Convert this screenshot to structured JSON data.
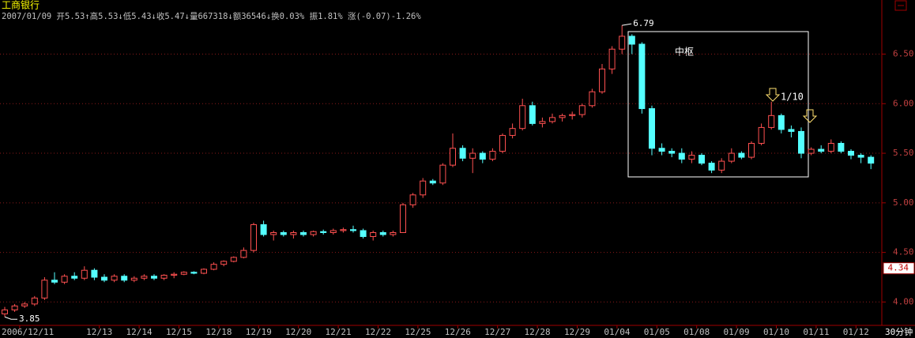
{
  "chart_data": {
    "type": "candlestick",
    "title": "工商银行",
    "info_line": "2007/01/09 开5.53↑高5.53↓低5.43↓收5.47↓量667318↓额36546↓换0.03% 振1.81% 涨(-0.07)-1.26%",
    "period": "30分钟",
    "zone_label": "中枢",
    "note_label": "1/10",
    "high_marker": 6.79,
    "low_marker": 3.85,
    "current_price": 4.34,
    "up_color": "#ff5050",
    "down_color": "#54ffff",
    "grid": true,
    "ylim": [
      3.82,
      6.95
    ],
    "yticks": [
      {
        "value": 4,
        "label": "4.00"
      },
      {
        "value": 4.5,
        "label": "4.50"
      },
      {
        "value": 5,
        "label": "5.00"
      },
      {
        "value": 5.5,
        "label": "5.50"
      },
      {
        "value": 6,
        "label": "6.00"
      },
      {
        "value": 6.5,
        "label": "6.50"
      }
    ],
    "categories": [
      null,
      "2006/12/11",
      null,
      null,
      null,
      null,
      null,
      null,
      null,
      "12/13",
      null,
      null,
      null,
      "12/14",
      null,
      null,
      null,
      "12/15",
      null,
      null,
      null,
      "12/18",
      null,
      null,
      null,
      "12/19",
      null,
      null,
      null,
      "12/20",
      null,
      null,
      null,
      "12/21",
      null,
      null,
      null,
      "12/22",
      null,
      null,
      null,
      "12/25",
      null,
      null,
      null,
      "12/26",
      null,
      null,
      null,
      "12/27",
      null,
      null,
      null,
      "12/28",
      null,
      null,
      null,
      "12/29",
      null,
      null,
      null,
      "01/04",
      null,
      null,
      null,
      "01/05",
      null,
      null,
      null,
      "01/08",
      null,
      null,
      null,
      "01/09",
      null,
      null,
      null,
      "01/10",
      null,
      null,
      null,
      "01/11",
      null,
      null,
      null,
      "01/12",
      null,
      null
    ],
    "open": [
      3.88,
      3.92,
      3.96,
      3.98,
      4.04,
      4.22,
      4.2,
      4.26,
      4.24,
      4.32,
      4.25,
      4.22,
      4.26,
      4.22,
      4.24,
      4.26,
      4.24,
      4.27,
      4.28,
      4.3,
      4.29,
      4.33,
      4.38,
      4.41,
      4.45,
      4.52,
      4.78,
      4.68,
      4.7,
      4.68,
      4.7,
      4.68,
      4.71,
      4.7,
      4.72,
      4.73,
      4.72,
      4.66,
      4.7,
      4.68,
      4.7,
      4.98,
      5.08,
      5.22,
      5.2,
      5.38,
      5.55,
      5.45,
      5.5,
      5.44,
      5.52,
      5.68,
      5.75,
      5.98,
      5.8,
      5.82,
      5.86,
      5.88,
      5.89,
      5.98,
      6.12,
      6.35,
      6.55,
      6.68,
      6.6,
      5.95,
      5.55,
      5.52,
      5.5,
      5.44,
      5.48,
      5.4,
      5.33,
      5.42,
      5.5,
      5.46,
      5.6,
      5.76,
      5.88,
      5.74,
      5.72,
      5.5,
      5.54,
      5.52,
      5.6,
      5.52,
      5.48,
      5.46
    ],
    "high": [
      3.95,
      3.98,
      4.0,
      4.06,
      4.25,
      4.3,
      4.28,
      4.3,
      4.36,
      4.34,
      4.28,
      4.28,
      4.28,
      4.26,
      4.28,
      4.28,
      4.28,
      4.3,
      4.31,
      4.31,
      4.34,
      4.4,
      4.42,
      4.46,
      4.55,
      4.8,
      4.82,
      4.72,
      4.72,
      4.72,
      4.72,
      4.72,
      4.73,
      4.74,
      4.75,
      4.77,
      4.74,
      4.72,
      4.72,
      4.72,
      5.0,
      5.1,
      5.25,
      5.24,
      5.4,
      5.7,
      5.58,
      5.55,
      5.52,
      5.55,
      5.7,
      5.8,
      6.05,
      6.02,
      5.86,
      5.9,
      5.9,
      5.92,
      6.0,
      6.15,
      6.4,
      6.58,
      6.79,
      6.7,
      6.62,
      5.98,
      5.6,
      5.55,
      5.55,
      5.52,
      5.5,
      5.42,
      5.45,
      5.55,
      5.52,
      5.62,
      5.8,
      6.02,
      5.9,
      5.78,
      5.76,
      5.56,
      5.58,
      5.64,
      5.62,
      5.54,
      5.5,
      5.48
    ],
    "low": [
      3.85,
      3.9,
      3.94,
      3.96,
      4.02,
      4.18,
      4.18,
      4.22,
      4.22,
      4.22,
      4.2,
      4.2,
      4.2,
      4.2,
      4.22,
      4.22,
      4.22,
      4.24,
      4.27,
      4.28,
      4.28,
      4.32,
      4.36,
      4.4,
      4.44,
      4.5,
      4.66,
      4.62,
      4.66,
      4.64,
      4.66,
      4.66,
      4.68,
      4.68,
      4.7,
      4.7,
      4.64,
      4.62,
      4.66,
      4.66,
      4.7,
      4.95,
      5.05,
      5.18,
      5.18,
      5.36,
      5.42,
      5.3,
      5.4,
      5.42,
      5.5,
      5.65,
      5.73,
      5.78,
      5.76,
      5.8,
      5.82,
      5.84,
      5.86,
      5.96,
      6.1,
      6.3,
      6.5,
      6.5,
      5.9,
      5.48,
      5.48,
      5.46,
      5.4,
      5.4,
      5.38,
      5.3,
      5.3,
      5.4,
      5.44,
      5.44,
      5.58,
      5.74,
      5.7,
      5.66,
      5.45,
      5.48,
      5.5,
      5.5,
      5.5,
      5.44,
      5.4,
      5.34
    ],
    "close": [
      3.92,
      3.96,
      3.98,
      4.04,
      4.22,
      4.2,
      4.26,
      4.24,
      4.32,
      4.25,
      4.22,
      4.26,
      4.22,
      4.24,
      4.26,
      4.24,
      4.27,
      4.28,
      4.3,
      4.29,
      4.33,
      4.38,
      4.41,
      4.45,
      4.52,
      4.78,
      4.68,
      4.7,
      4.68,
      4.7,
      4.68,
      4.71,
      4.7,
      4.72,
      4.73,
      4.72,
      4.66,
      4.7,
      4.68,
      4.7,
      4.98,
      5.08,
      5.22,
      5.2,
      5.38,
      5.55,
      5.45,
      5.5,
      5.44,
      5.52,
      5.68,
      5.75,
      5.98,
      5.8,
      5.82,
      5.86,
      5.88,
      5.89,
      5.98,
      6.12,
      6.35,
      6.55,
      6.68,
      6.6,
      5.95,
      5.55,
      5.52,
      5.5,
      5.44,
      5.48,
      5.4,
      5.33,
      5.42,
      5.5,
      5.46,
      5.6,
      5.76,
      5.88,
      5.74,
      5.72,
      5.5,
      5.54,
      5.52,
      5.6,
      5.52,
      5.48,
      5.46,
      5.4
    ]
  }
}
